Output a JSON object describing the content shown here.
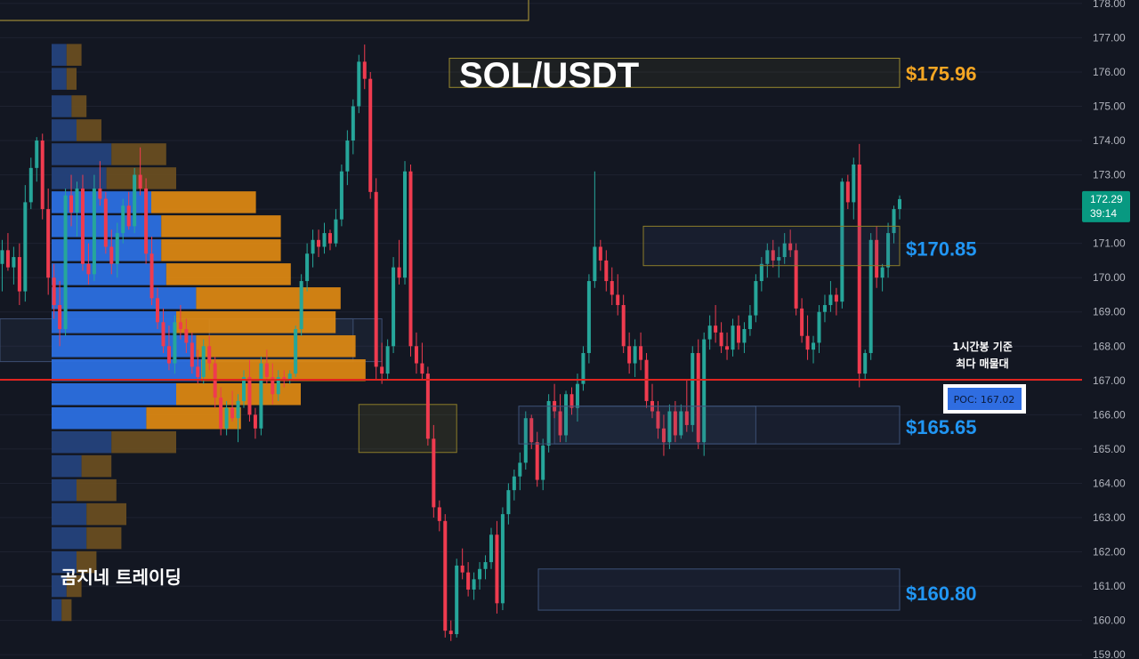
{
  "chart_data": {
    "type": "candlestick",
    "title": "SOL/USDT",
    "timeframe_note": [
      "1시간봉 기준",
      "최다 매물대"
    ],
    "watermark": "곰지네 트레이딩",
    "y_axis": {
      "min": 158.9,
      "max": 178.1,
      "ticks": [
        "159.00",
        "160.00",
        "161.00",
        "162.00",
        "163.00",
        "164.00",
        "165.00",
        "166.00",
        "167.00",
        "168.00",
        "169.00",
        "170.00",
        "171.00",
        "172.00",
        "173.00",
        "174.00",
        "175.00",
        "176.00",
        "177.00",
        "178.00"
      ]
    },
    "current_price": {
      "price_label": "172.29",
      "countdown": "39:14",
      "value": 172.29
    },
    "poc": {
      "label": "POC: 167.02",
      "value": 167.02
    },
    "levels": [
      {
        "label": "$175.96",
        "value": 175.96,
        "low": 175.55,
        "high": 176.4,
        "color": "#f5a623"
      },
      {
        "label": "$170.85",
        "value": 170.85,
        "low": 170.35,
        "high": 171.5,
        "color": "#2196f3"
      },
      {
        "label": "$165.65",
        "value": 165.65,
        "low": 165.15,
        "high": 166.25,
        "color": "#2196f3"
      },
      {
        "label": "$160.80",
        "value": 160.8,
        "low": 160.3,
        "high": 161.5,
        "color": "#2196f3"
      }
    ],
    "zones": [
      {
        "x_from": 0,
        "x_to": 62,
        "low": 167.55,
        "high": 168.8,
        "kind": "blue"
      },
      {
        "x_from": 63,
        "x_to": 80,
        "low": 164.9,
        "high": 166.3,
        "kind": "yellow"
      },
      {
        "x_from": 97,
        "x_to": 132,
        "low": 165.15,
        "high": 166.25,
        "kind": "blue"
      },
      {
        "x_from": 37,
        "x_to": 67,
        "low": 167.55,
        "high": 168.8,
        "kind": "blue"
      }
    ],
    "volume_profile": {
      "bins": [
        {
          "price": 176.5,
          "up": 3,
          "down": 3
        },
        {
          "price": 175.8,
          "up": 3,
          "down": 2
        },
        {
          "price": 175.0,
          "up": 4,
          "down": 3
        },
        {
          "price": 174.3,
          "up": 5,
          "down": 5
        },
        {
          "price": 173.6,
          "up": 12,
          "down": 11
        },
        {
          "price": 172.9,
          "up": 11,
          "down": 14
        },
        {
          "price": 172.2,
          "up": 20,
          "down": 21
        },
        {
          "price": 171.5,
          "up": 22,
          "down": 24
        },
        {
          "price": 170.8,
          "up": 22,
          "down": 24
        },
        {
          "price": 170.1,
          "up": 23,
          "down": 25
        },
        {
          "price": 169.4,
          "up": 29,
          "down": 29
        },
        {
          "price": 168.7,
          "up": 25,
          "down": 32
        },
        {
          "price": 168.0,
          "up": 29,
          "down": 32
        },
        {
          "price": 167.3,
          "up": 30,
          "down": 33
        },
        {
          "price": 166.6,
          "up": 25,
          "down": 25
        },
        {
          "price": 165.9,
          "up": 19,
          "down": 19
        },
        {
          "price": 165.2,
          "up": 12,
          "down": 13
        },
        {
          "price": 164.5,
          "up": 6,
          "down": 6
        },
        {
          "price": 163.8,
          "up": 5,
          "down": 8
        },
        {
          "price": 163.1,
          "up": 7,
          "down": 8
        },
        {
          "price": 162.4,
          "up": 7,
          "down": 7
        },
        {
          "price": 161.7,
          "up": 5,
          "down": 4
        },
        {
          "price": 161.0,
          "up": 3,
          "down": 3
        },
        {
          "price": 160.3,
          "up": 2,
          "down": 2
        }
      ]
    },
    "ohlc": [
      [
        171.2,
        171.6,
        170.0,
        170.4
      ],
      [
        170.4,
        171.1,
        169.6,
        170.8
      ],
      [
        170.8,
        171.3,
        170.2,
        170.3
      ],
      [
        170.3,
        170.9,
        169.8,
        170.6
      ],
      [
        170.6,
        171.0,
        169.2,
        169.6
      ],
      [
        169.6,
        172.7,
        169.3,
        172.2
      ],
      [
        172.2,
        173.5,
        172.0,
        173.2
      ],
      [
        173.2,
        174.1,
        172.8,
        174.0
      ],
      [
        174.0,
        174.2,
        171.7,
        172.0
      ],
      [
        172.0,
        172.6,
        169.5,
        170.0
      ],
      [
        170.0,
        170.4,
        168.8,
        169.2
      ],
      [
        169.2,
        169.9,
        168.0,
        168.5
      ],
      [
        168.5,
        172.6,
        168.3,
        172.4
      ],
      [
        172.4,
        173.0,
        171.5,
        171.9
      ],
      [
        171.9,
        172.8,
        171.2,
        172.6
      ],
      [
        172.6,
        173.0,
        170.2,
        170.4
      ],
      [
        170.4,
        171.0,
        169.8,
        170.1
      ],
      [
        170.1,
        173.0,
        169.9,
        172.6
      ],
      [
        172.6,
        173.4,
        172.1,
        172.3
      ],
      [
        172.3,
        172.5,
        170.7,
        170.9
      ],
      [
        170.9,
        171.4,
        170.1,
        170.4
      ],
      [
        170.4,
        171.6,
        170.0,
        171.3
      ],
      [
        171.3,
        172.3,
        171.0,
        172.1
      ],
      [
        172.1,
        172.5,
        171.4,
        171.5
      ],
      [
        171.5,
        173.2,
        171.3,
        173.0
      ],
      [
        173.0,
        173.8,
        172.4,
        172.6
      ],
      [
        172.6,
        172.9,
        170.4,
        170.7
      ],
      [
        170.7,
        171.2,
        169.2,
        169.4
      ],
      [
        169.4,
        169.7,
        168.5,
        168.7
      ],
      [
        168.7,
        169.1,
        167.8,
        168.0
      ],
      [
        168.0,
        168.6,
        167.3,
        167.5
      ],
      [
        167.5,
        168.9,
        167.2,
        168.7
      ],
      [
        168.7,
        169.2,
        168.2,
        168.5
      ],
      [
        168.5,
        168.8,
        167.8,
        168.1
      ],
      [
        168.1,
        168.4,
        167.2,
        167.4
      ],
      [
        167.4,
        167.9,
        166.9,
        167.1
      ],
      [
        167.1,
        168.2,
        166.9,
        168.0
      ],
      [
        168.0,
        168.3,
        167.3,
        167.5
      ],
      [
        167.5,
        167.7,
        166.2,
        166.5
      ],
      [
        166.5,
        166.8,
        165.4,
        165.6
      ],
      [
        165.6,
        166.4,
        165.4,
        166.2
      ],
      [
        166.2,
        166.7,
        165.8,
        165.9
      ],
      [
        165.9,
        166.6,
        165.2,
        166.4
      ],
      [
        166.4,
        167.3,
        166.2,
        167.1
      ],
      [
        167.1,
        167.6,
        165.8,
        166.0
      ],
      [
        166.0,
        166.2,
        165.3,
        165.6
      ],
      [
        165.6,
        167.7,
        165.4,
        167.5
      ],
      [
        167.5,
        167.9,
        166.9,
        167.1
      ],
      [
        167.1,
        167.5,
        166.3,
        166.6
      ],
      [
        166.6,
        167.3,
        166.4,
        167.1
      ],
      [
        167.1,
        167.3,
        166.8,
        167.0
      ],
      [
        167.0,
        167.3,
        166.9,
        167.2
      ],
      [
        167.2,
        168.6,
        167.1,
        168.5
      ],
      [
        168.5,
        170.1,
        168.3,
        169.9
      ],
      [
        169.9,
        171.0,
        169.6,
        170.7
      ],
      [
        170.7,
        171.4,
        170.3,
        171.1
      ],
      [
        171.1,
        171.4,
        170.6,
        170.9
      ],
      [
        170.9,
        171.6,
        170.7,
        171.3
      ],
      [
        171.3,
        171.4,
        170.8,
        171.0
      ],
      [
        171.0,
        172.0,
        170.9,
        171.7
      ],
      [
        171.7,
        173.3,
        171.5,
        173.1
      ],
      [
        173.1,
        174.3,
        172.7,
        174.0
      ],
      [
        174.0,
        175.2,
        173.6,
        175.0
      ],
      [
        175.0,
        176.5,
        174.8,
        176.3
      ],
      [
        176.3,
        176.8,
        175.5,
        175.8
      ],
      [
        175.8,
        176.0,
        172.3,
        172.5
      ],
      [
        172.5,
        172.9,
        167.0,
        167.4
      ],
      [
        167.4,
        168.1,
        166.9,
        167.2
      ],
      [
        167.2,
        168.2,
        167.0,
        168.0
      ],
      [
        168.0,
        170.6,
        167.8,
        170.3
      ],
      [
        170.3,
        171.1,
        169.8,
        170.0
      ],
      [
        170.0,
        173.4,
        169.8,
        173.1
      ],
      [
        173.1,
        173.3,
        167.7,
        168.0
      ],
      [
        168.0,
        168.4,
        167.2,
        167.5
      ],
      [
        167.5,
        168.1,
        167.0,
        167.2
      ],
      [
        167.2,
        167.4,
        165.1,
        165.3
      ],
      [
        165.3,
        165.7,
        163.0,
        163.3
      ],
      [
        163.3,
        163.5,
        162.6,
        162.9
      ],
      [
        162.9,
        163.1,
        159.5,
        159.7
      ],
      [
        159.7,
        160.0,
        159.4,
        159.6
      ],
      [
        159.6,
        161.8,
        159.5,
        161.6
      ],
      [
        161.6,
        162.1,
        161.2,
        161.4
      ],
      [
        161.4,
        161.7,
        160.7,
        160.9
      ],
      [
        160.9,
        161.4,
        160.6,
        161.2
      ],
      [
        161.2,
        161.7,
        160.9,
        161.5
      ],
      [
        161.5,
        161.9,
        161.2,
        161.7
      ],
      [
        161.7,
        162.7,
        161.5,
        162.5
      ],
      [
        162.5,
        162.9,
        160.2,
        160.5
      ],
      [
        160.5,
        163.3,
        160.3,
        163.1
      ],
      [
        163.1,
        164.0,
        162.8,
        163.8
      ],
      [
        163.8,
        164.4,
        163.5,
        164.2
      ],
      [
        164.2,
        164.9,
        163.8,
        164.6
      ],
      [
        164.6,
        166.1,
        164.4,
        165.9
      ],
      [
        165.9,
        166.0,
        165.0,
        165.2
      ],
      [
        165.2,
        165.5,
        163.9,
        164.1
      ],
      [
        164.1,
        165.3,
        163.8,
        165.1
      ],
      [
        165.1,
        166.6,
        164.9,
        166.4
      ],
      [
        166.4,
        166.9,
        165.9,
        166.1
      ],
      [
        166.1,
        166.6,
        165.2,
        165.4
      ],
      [
        165.4,
        166.7,
        165.2,
        166.6
      ],
      [
        166.6,
        166.8,
        166.0,
        166.2
      ],
      [
        166.2,
        167.2,
        165.8,
        166.9
      ],
      [
        166.9,
        168.0,
        166.7,
        167.8
      ],
      [
        167.8,
        170.1,
        167.5,
        169.9
      ],
      [
        169.9,
        173.1,
        169.7,
        170.9
      ],
      [
        170.9,
        171.1,
        170.2,
        170.5
      ],
      [
        170.5,
        170.8,
        169.6,
        169.9
      ],
      [
        169.9,
        170.3,
        169.2,
        169.5
      ],
      [
        169.5,
        170.1,
        168.9,
        169.2
      ],
      [
        169.2,
        169.5,
        167.8,
        168.0
      ],
      [
        168.0,
        168.4,
        167.2,
        167.5
      ],
      [
        167.5,
        168.2,
        167.1,
        168.0
      ],
      [
        168.0,
        168.4,
        167.3,
        167.6
      ],
      [
        167.6,
        167.8,
        166.2,
        166.4
      ],
      [
        166.4,
        166.9,
        165.9,
        166.1
      ],
      [
        166.1,
        166.4,
        165.3,
        165.6
      ],
      [
        165.6,
        166.0,
        164.8,
        165.2
      ],
      [
        165.2,
        166.3,
        165.0,
        166.1
      ],
      [
        166.1,
        166.4,
        165.2,
        165.4
      ],
      [
        165.4,
        166.3,
        165.3,
        166.1
      ],
      [
        166.1,
        167.0,
        165.5,
        165.7
      ],
      [
        165.7,
        168.0,
        165.5,
        167.8
      ],
      [
        167.8,
        168.2,
        165.0,
        165.2
      ],
      [
        165.2,
        168.4,
        164.8,
        168.2
      ],
      [
        168.2,
        168.9,
        167.9,
        168.6
      ],
      [
        168.6,
        169.2,
        168.1,
        168.4
      ],
      [
        168.4,
        168.7,
        167.8,
        168.0
      ],
      [
        168.0,
        168.4,
        167.6,
        167.9
      ],
      [
        167.9,
        168.8,
        167.7,
        168.6
      ],
      [
        168.6,
        168.9,
        167.9,
        168.1
      ],
      [
        168.1,
        168.7,
        167.8,
        168.5
      ],
      [
        168.5,
        169.2,
        168.3,
        168.9
      ],
      [
        168.9,
        170.1,
        168.7,
        169.9
      ],
      [
        169.9,
        170.6,
        169.6,
        170.4
      ],
      [
        170.4,
        171.0,
        170.0,
        170.8
      ],
      [
        170.8,
        171.1,
        170.3,
        170.5
      ],
      [
        170.5,
        170.9,
        170.0,
        170.6
      ],
      [
        170.6,
        171.3,
        170.4,
        171.0
      ],
      [
        171.0,
        171.4,
        170.6,
        170.8
      ],
      [
        170.8,
        171.0,
        168.9,
        169.1
      ],
      [
        169.1,
        169.4,
        168.1,
        168.3
      ],
      [
        168.3,
        168.9,
        167.6,
        167.9
      ],
      [
        167.9,
        168.3,
        167.5,
        168.1
      ],
      [
        168.1,
        169.2,
        167.8,
        169.0
      ],
      [
        169.0,
        169.5,
        168.7,
        169.2
      ],
      [
        169.2,
        169.9,
        169.0,
        169.5
      ],
      [
        169.5,
        169.7,
        168.9,
        169.3
      ],
      [
        169.3,
        172.9,
        169.1,
        172.8
      ],
      [
        172.8,
        173.0,
        172.0,
        172.2
      ],
      [
        172.2,
        173.5,
        171.7,
        173.3
      ],
      [
        173.3,
        173.9,
        166.8,
        167.2
      ],
      [
        167.2,
        167.9,
        167.0,
        167.8
      ],
      [
        167.8,
        171.3,
        167.6,
        171.1
      ],
      [
        171.1,
        171.5,
        169.7,
        170.0
      ],
      [
        170.0,
        170.4,
        169.6,
        170.3
      ],
      [
        170.3,
        171.6,
        170.0,
        171.3
      ],
      [
        171.3,
        172.1,
        171.0,
        172.0
      ],
      [
        172.0,
        172.4,
        171.7,
        172.29
      ]
    ]
  }
}
